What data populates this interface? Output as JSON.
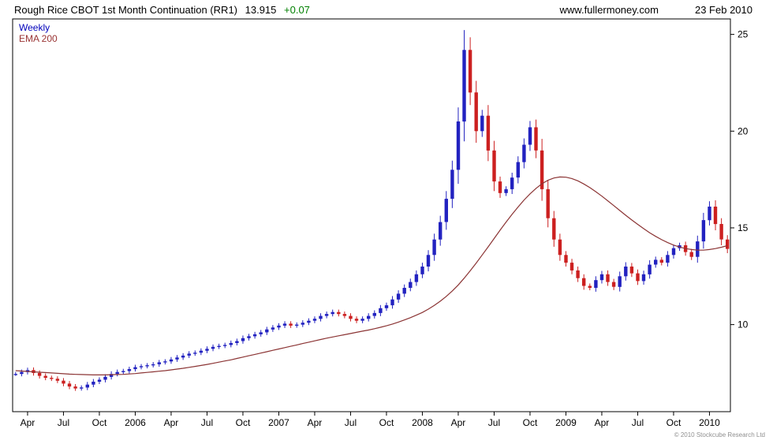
{
  "header": {
    "title": "Rough Rice CBOT 1st Month Continuation (RR1)",
    "price": "13.915",
    "change": "+0.07",
    "website": "www.fullermoney.com",
    "date": "23 Feb 2010"
  },
  "footer": {
    "copyright": "© 2010 Stockcube Research Ltd"
  },
  "colors": {
    "up_candle": "#2222c0",
    "down_candle": "#cc2020",
    "ema_line": "#8b3434",
    "weekly_label": "#0000bb",
    "ema_label": "#993333",
    "change_positive": "#008000",
    "copyright_gray": "#909090",
    "axis_text": "#000000"
  },
  "chart_data": {
    "type": "candlestick",
    "title": "Rough Rice CBOT 1st Month Continuation (RR1)",
    "frequency": "weekly",
    "legend": [
      "Weekly",
      "EMA 200"
    ],
    "legend_position": "top-left",
    "grid": false,
    "last_price": 13.915,
    "change": 0.07,
    "ylim": [
      5.5,
      25.8
    ],
    "yticks": [
      10,
      15,
      20,
      25
    ],
    "yaxis_side": "right",
    "x_start": "Mar 2005",
    "x_end": "Feb 2010",
    "points_per_month": 2,
    "xticks": [
      {
        "label": "Apr",
        "i": 2
      },
      {
        "label": "Jul",
        "i": 8
      },
      {
        "label": "Oct",
        "i": 14
      },
      {
        "label": "2006",
        "i": 20
      },
      {
        "label": "Apr",
        "i": 26
      },
      {
        "label": "Jul",
        "i": 32
      },
      {
        "label": "Oct",
        "i": 38
      },
      {
        "label": "2007",
        "i": 44
      },
      {
        "label": "Apr",
        "i": 50
      },
      {
        "label": "Jul",
        "i": 56
      },
      {
        "label": "Oct",
        "i": 62
      },
      {
        "label": "2008",
        "i": 68
      },
      {
        "label": "Apr",
        "i": 74
      },
      {
        "label": "Jul",
        "i": 80
      },
      {
        "label": "Oct",
        "i": 86
      },
      {
        "label": "2009",
        "i": 92
      },
      {
        "label": "Apr",
        "i": 98
      },
      {
        "label": "Jul",
        "i": 104
      },
      {
        "label": "Oct",
        "i": 110
      },
      {
        "label": "2010",
        "i": 116
      }
    ],
    "series": [
      {
        "name": "Weekly close (half-month samples)",
        "values": [
          7.45,
          7.55,
          7.65,
          7.5,
          7.35,
          7.25,
          7.2,
          7.1,
          6.95,
          6.8,
          6.7,
          6.75,
          6.9,
          7.05,
          7.15,
          7.3,
          7.45,
          7.55,
          7.6,
          7.7,
          7.8,
          7.85,
          7.9,
          7.95,
          8.05,
          8.1,
          8.2,
          8.3,
          8.4,
          8.5,
          8.55,
          8.65,
          8.75,
          8.85,
          8.9,
          8.95,
          9.05,
          9.15,
          9.3,
          9.4,
          9.5,
          9.6,
          9.75,
          9.85,
          9.95,
          10.05,
          9.95,
          10.0,
          10.1,
          10.2,
          10.3,
          10.45,
          10.55,
          10.65,
          10.55,
          10.45,
          10.3,
          10.2,
          10.3,
          10.45,
          10.6,
          10.85,
          11.0,
          11.3,
          11.6,
          11.9,
          12.2,
          12.6,
          13.0,
          13.6,
          14.4,
          15.3,
          16.5,
          18.0,
          20.5,
          24.2,
          22.0,
          20.0,
          20.8,
          19.0,
          17.4,
          16.8,
          17.0,
          17.6,
          18.4,
          19.3,
          20.2,
          19.0,
          17.0,
          15.5,
          14.4,
          13.6,
          13.2,
          12.8,
          12.4,
          12.0,
          11.9,
          12.3,
          12.6,
          12.2,
          11.95,
          12.5,
          13.0,
          12.65,
          12.25,
          12.6,
          13.1,
          13.35,
          13.2,
          13.6,
          13.95,
          14.1,
          13.75,
          13.5,
          14.3,
          15.4,
          16.1,
          15.2,
          14.4,
          13.915
        ]
      },
      {
        "name": "EMA 200",
        "values": [
          7.62,
          7.6,
          7.58,
          7.56,
          7.54,
          7.52,
          7.5,
          7.48,
          7.46,
          7.44,
          7.43,
          7.42,
          7.41,
          7.4,
          7.4,
          7.4,
          7.41,
          7.42,
          7.43,
          7.45,
          7.47,
          7.5,
          7.53,
          7.56,
          7.59,
          7.62,
          7.66,
          7.7,
          7.74,
          7.79,
          7.84,
          7.89,
          7.94,
          8.0,
          8.06,
          8.12,
          8.18,
          8.25,
          8.32,
          8.39,
          8.46,
          8.53,
          8.6,
          8.67,
          8.74,
          8.81,
          8.88,
          8.95,
          9.02,
          9.09,
          9.16,
          9.23,
          9.3,
          9.36,
          9.42,
          9.48,
          9.54,
          9.6,
          9.66,
          9.72,
          9.79,
          9.86,
          9.94,
          10.03,
          10.13,
          10.24,
          10.36,
          10.49,
          10.63,
          10.8,
          10.99,
          11.21,
          11.46,
          11.74,
          12.05,
          12.4,
          12.78,
          13.18,
          13.6,
          14.02,
          14.45,
          14.88,
          15.3,
          15.7,
          16.08,
          16.44,
          16.76,
          17.04,
          17.28,
          17.46,
          17.58,
          17.63,
          17.62,
          17.55,
          17.43,
          17.27,
          17.08,
          16.87,
          16.64,
          16.4,
          16.15,
          15.9,
          15.65,
          15.41,
          15.18,
          14.96,
          14.75,
          14.56,
          14.39,
          14.24,
          14.11,
          14.01,
          13.93,
          13.88,
          13.85,
          13.85,
          13.88,
          13.93,
          14.0,
          14.08
        ]
      }
    ]
  }
}
